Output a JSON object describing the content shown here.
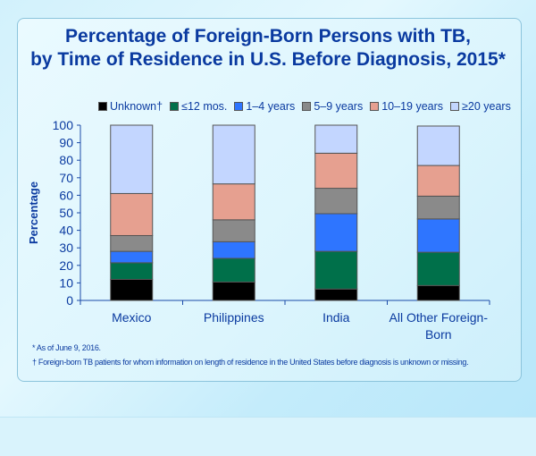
{
  "title_line1": "Percentage of Foreign-Born  Persons with TB,",
  "title_line2": "by Time of Residence in U.S. Before Diagnosis, 2015*",
  "footnotes": [
    "* As of June 9, 2016.",
    "† Foreign-born TB patients for whom information on length of residence in the United States before diagnosis is unknown or missing."
  ],
  "chart_data": {
    "type": "bar",
    "stacked": true,
    "title": "Percentage of Foreign-Born Persons with TB, by Time of Residence in U.S. Before Diagnosis, 2015*",
    "ylabel": "Percentage",
    "xlabel": "",
    "ylim": [
      0,
      100
    ],
    "yticks": [
      "0",
      "10",
      "20",
      "30",
      "40",
      "50",
      "60",
      "70",
      "80",
      "90",
      "100"
    ],
    "categories": [
      "Mexico",
      "Philippines",
      "India",
      "All Other Foreign-Born"
    ],
    "legend_position": "top",
    "series": [
      {
        "name": "Unknown†",
        "color": "#000000",
        "values": [
          12,
          10.5,
          6.5,
          8.5
        ]
      },
      {
        "name": "≤12 mos.",
        "color": "#00704a",
        "values": [
          9.5,
          13.5,
          21.5,
          19
        ]
      },
      {
        "name": "1–4 years",
        "color": "#2e75ff",
        "values": [
          6.5,
          9.5,
          21.5,
          19
        ]
      },
      {
        "name": "5–9 years",
        "color": "#8a8a8a",
        "values": [
          9,
          12.5,
          14.5,
          13
        ]
      },
      {
        "name": "10–19 years",
        "color": "#e6a090",
        "values": [
          24,
          20.5,
          20,
          17.5
        ]
      },
      {
        "name": "≥20 years",
        "color": "#c3d6ff",
        "values": [
          39,
          33.5,
          16,
          22.5
        ]
      }
    ]
  }
}
